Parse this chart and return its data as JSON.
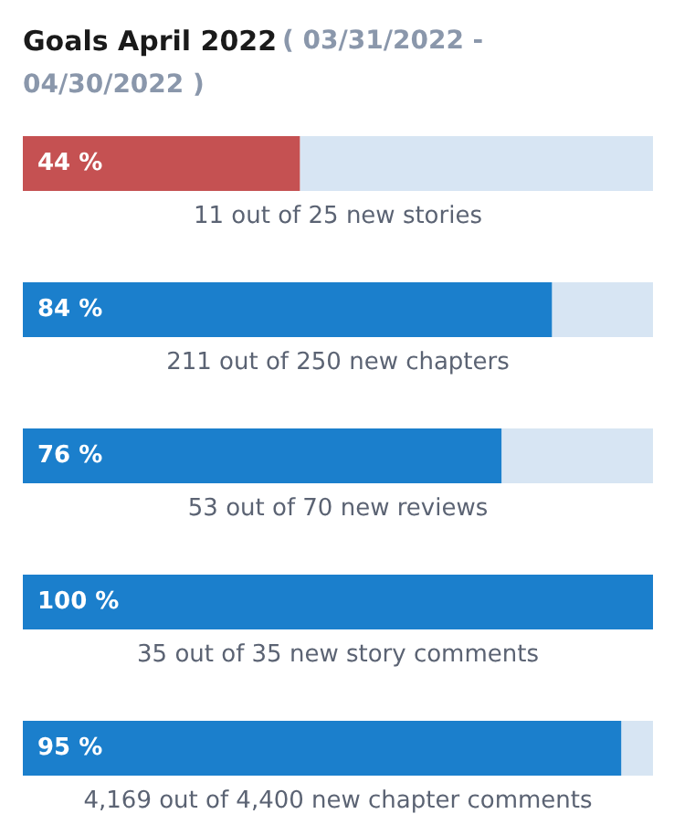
{
  "chart_data": {
    "type": "bar",
    "orientation": "horizontal",
    "stacked": true,
    "title": "Goals April 2022",
    "subtitle": "( 03/31/2022 - 04/30/2022 )",
    "categories": [
      "11 out of 25 new stories",
      "211 out of 250 new chapters",
      "53 out of 70 new reviews",
      "35 out of 35 new story comments",
      "4,169 out of 4,400 new chapter comments"
    ],
    "xlim": [
      0,
      100
    ],
    "tick_labels": false,
    "series": [
      {
        "colors": [
          "#c55152",
          "#1b7fcc",
          "#1b7fcc",
          "#1b7fcc",
          "#1b7fcc"
        ],
        "values": [
          44,
          84,
          76,
          100,
          95
        ],
        "value_labels": [
          "44 %",
          "84 %",
          "76 %",
          "100 %",
          "95 %"
        ]
      },
      {
        "color": "#d7e5f3",
        "values": [
          56,
          16,
          24,
          0,
          5
        ]
      }
    ]
  }
}
